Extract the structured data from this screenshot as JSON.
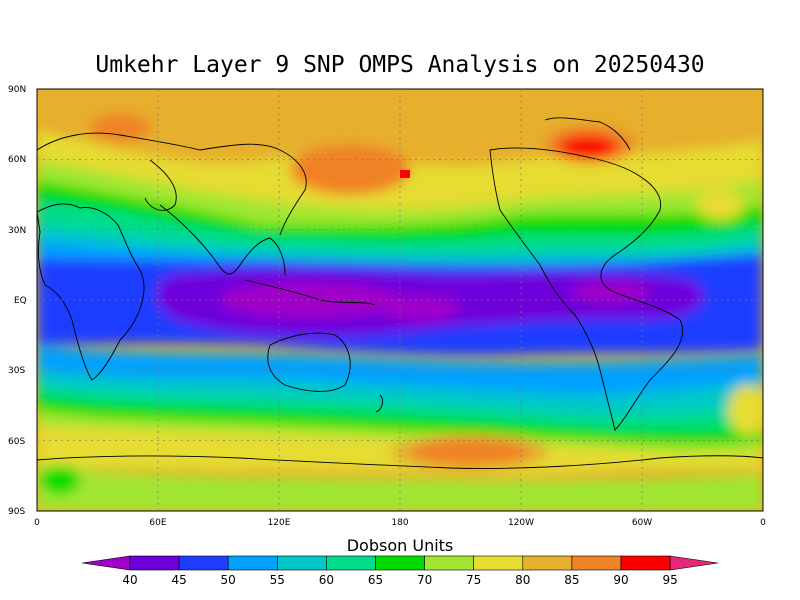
{
  "title": "Umkehr Layer 9 SNP OMPS Analysis on 20250430",
  "lat_labels": [
    "90N",
    "60N",
    "30N",
    "EQ",
    "30S",
    "60S",
    "90S"
  ],
  "lon_labels": [
    "0",
    "60E",
    "120E",
    "180",
    "120W",
    "60W",
    "0"
  ],
  "colorbar": {
    "title": "Dobson Units",
    "levels": [
      "40",
      "45",
      "50",
      "55",
      "60",
      "65",
      "70",
      "75",
      "80",
      "85",
      "90",
      "95"
    ],
    "colors": [
      "#a000c8",
      "#6e00dc",
      "#1e3cff",
      "#00a0ff",
      "#00c8c8",
      "#00dc8c",
      "#00dc00",
      "#a0e632",
      "#e6dc32",
      "#e6af2d",
      "#f08228",
      "#fa0000",
      "#e6287a"
    ]
  },
  "palette": {
    "purple": "#a000c8",
    "violet": "#6e00dc",
    "blue": "#1e3cff",
    "lightblue": "#00a0ff",
    "teal": "#00c8c8",
    "seagreen": "#00dc8c",
    "green": "#00dc00",
    "lime": "#a0e632",
    "yellow": "#e6dc32",
    "gold": "#e6af2d",
    "orange": "#f08228",
    "red": "#fa0000"
  },
  "chart_data": {
    "type": "heatmap",
    "title": "Umkehr Layer 9 SNP OMPS Analysis on 20250430",
    "xlabel": "",
    "ylabel": "",
    "xlim": [
      0,
      360
    ],
    "ylim": [
      -90,
      90
    ],
    "units": "Dobson Units",
    "contour_levels": [
      40,
      45,
      50,
      55,
      60,
      65,
      70,
      75,
      80,
      85,
      90,
      95
    ],
    "grid": true
  }
}
